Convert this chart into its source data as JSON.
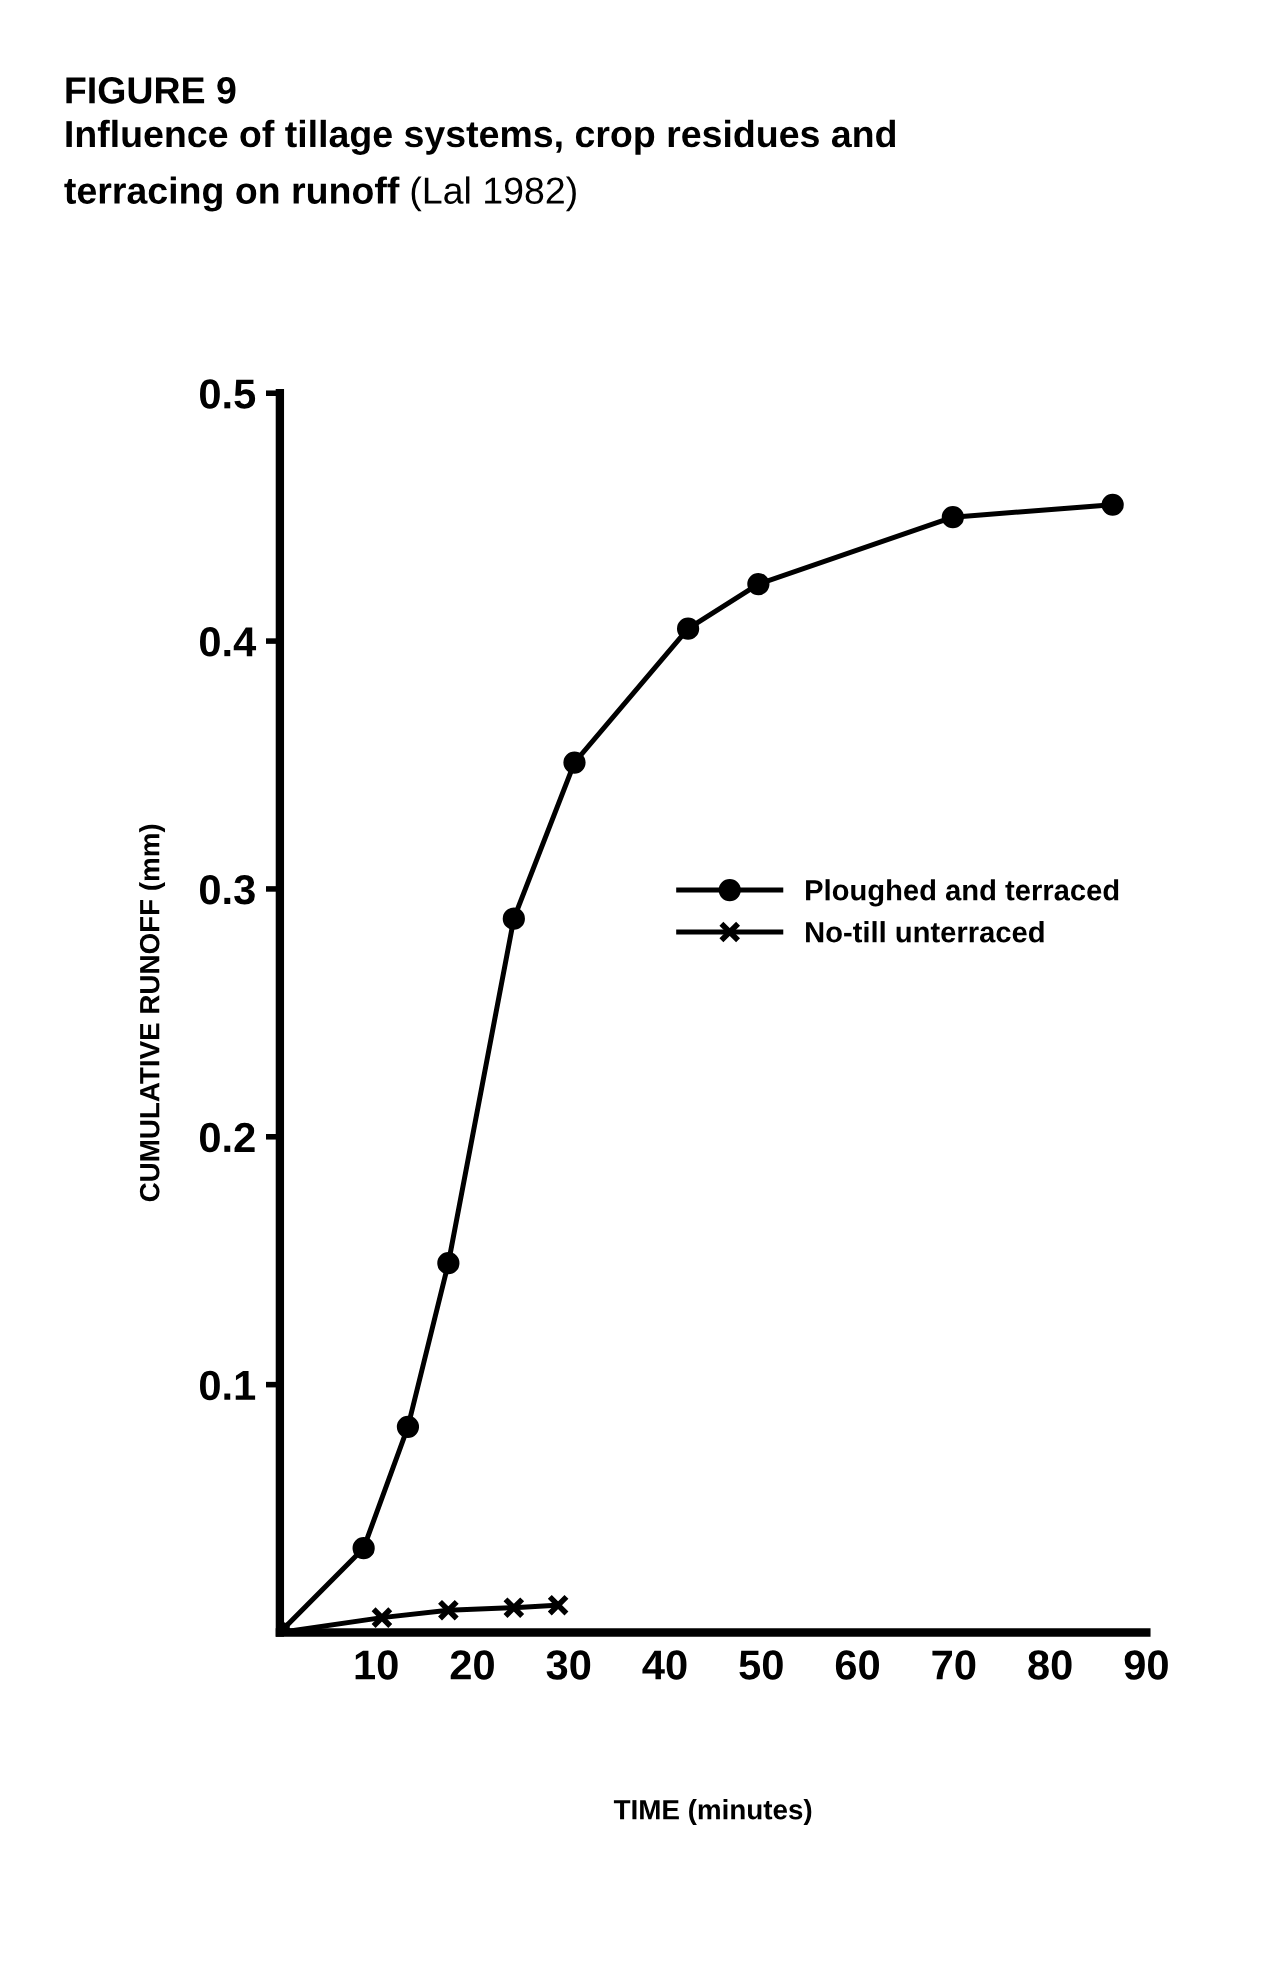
{
  "chart_data": {
    "type": "line",
    "title": "FIGURE 9",
    "subtitle": "Influence of tillage systems, crop residues and\nterracing on runoff",
    "annotations": [
      "(Lal 1982)"
    ],
    "xlabel": "TIME (minutes)",
    "ylabel": "CUMULATIVE RUNOFF (mm)",
    "series": [
      {
        "name": "Ploughed and terraced",
        "color": "#000000",
        "marker": "circle",
        "x": [
          0,
          8.7,
          13.3,
          17.5,
          24.3,
          30.6,
          42.4,
          49.7,
          69.9,
          86.5
        ],
        "values": [
          0,
          0.034,
          0.083,
          0.149,
          0.288,
          0.351,
          0.405,
          0.423,
          0.45,
          0.455
        ]
      },
      {
        "name": "No-till unterraced",
        "color": "#000000",
        "marker": "cross",
        "x": [
          0,
          10.6,
          17.5,
          24.3,
          28.9
        ],
        "values": [
          0,
          0.006,
          0.009,
          0.01,
          0.011
        ]
      }
    ],
    "xlim": [
      0,
      90
    ],
    "ylim": [
      0,
      0.5
    ],
    "xticks": [
      10,
      20,
      30,
      40,
      50,
      60,
      70,
      80,
      90
    ],
    "yticks": [
      0.1,
      0.2,
      0.3,
      0.4,
      0.5
    ],
    "line_style": "solid",
    "grid": false,
    "legend": "center right"
  }
}
